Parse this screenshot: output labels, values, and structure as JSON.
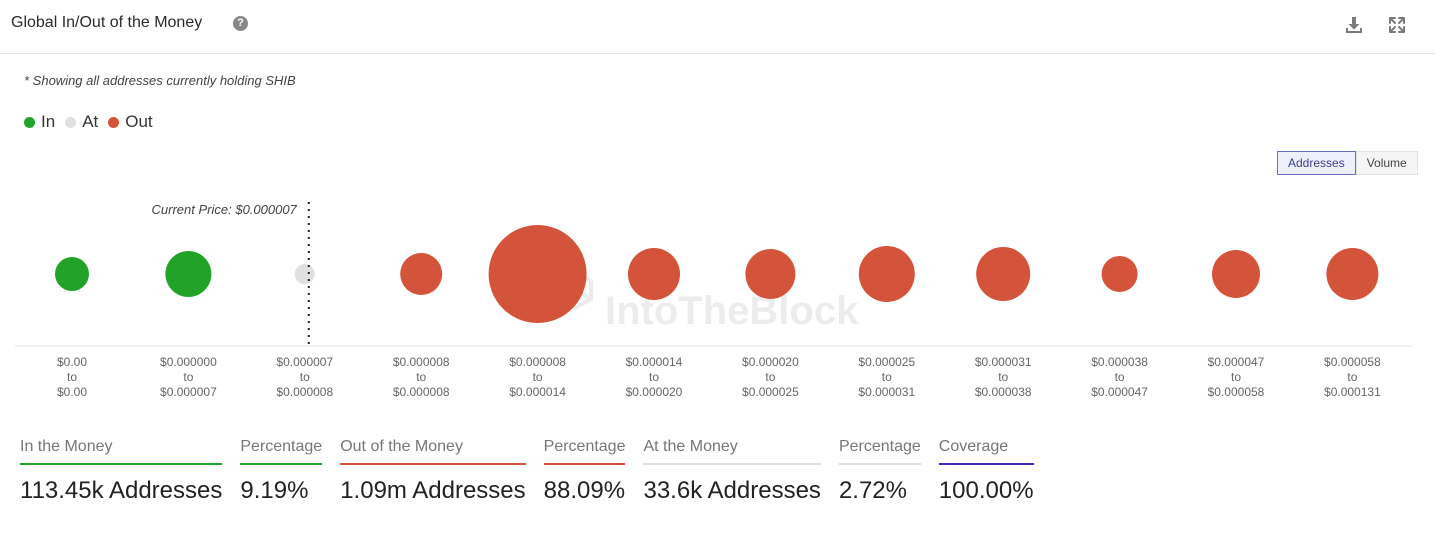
{
  "header": {
    "title": "Global In/Out of the Money",
    "help_icon": "question-circle-icon",
    "download_icon": "download-icon",
    "expand_icon": "expand-icon"
  },
  "note": "* Showing all addresses currently holding SHIB",
  "legend": [
    {
      "label": "In",
      "color": "#22a228"
    },
    {
      "label": "At",
      "color": "#e0e0e0"
    },
    {
      "label": "Out",
      "color": "#d4533b"
    }
  ],
  "toggle": {
    "addresses_label": "Addresses",
    "volume_label": "Volume",
    "active": "Addresses"
  },
  "watermark": "IntoTheBlock",
  "chart_data": {
    "type": "bubble",
    "current_price_label": "Current Price: $0.000007",
    "current_price_bucket_index": 2,
    "buckets": [
      {
        "from": "$0.00",
        "to": "$0.00",
        "status": "in",
        "size": 17
      },
      {
        "from": "$0.000000",
        "to": "$0.000007",
        "status": "in",
        "size": 23
      },
      {
        "from": "$0.000007",
        "to": "$0.000008",
        "status": "at",
        "size": 10
      },
      {
        "from": "$0.000008",
        "to": "$0.000008",
        "status": "out",
        "size": 21
      },
      {
        "from": "$0.000008",
        "to": "$0.000014",
        "status": "out",
        "size": 49
      },
      {
        "from": "$0.000014",
        "to": "$0.000020",
        "status": "out",
        "size": 26
      },
      {
        "from": "$0.000020",
        "to": "$0.000025",
        "status": "out",
        "size": 25
      },
      {
        "from": "$0.000025",
        "to": "$0.000031",
        "status": "out",
        "size": 28
      },
      {
        "from": "$0.000031",
        "to": "$0.000038",
        "status": "out",
        "size": 27
      },
      {
        "from": "$0.000038",
        "to": "$0.000047",
        "status": "out",
        "size": 18
      },
      {
        "from": "$0.000047",
        "to": "$0.000058",
        "status": "out",
        "size": 24
      },
      {
        "from": "$0.000058",
        "to": "$0.000131",
        "status": "out",
        "size": 26
      }
    ],
    "range_connector": "to",
    "colors": {
      "in": "#22a228",
      "at": "#e0e0e0",
      "out": "#d4533b"
    }
  },
  "stats": [
    {
      "label": "In the Money",
      "value": "113.45k Addresses",
      "color": "#22a228"
    },
    {
      "label": "Percentage",
      "value": "9.19%",
      "color": "#22a228"
    },
    {
      "label": "Out of the Money",
      "value": "1.09m Addresses",
      "color": "#d4533b"
    },
    {
      "label": "Percentage",
      "value": "88.09%",
      "color": "#d4533b"
    },
    {
      "label": "At the Money",
      "value": "33.6k Addresses",
      "color": "#dcdcdc"
    },
    {
      "label": "Percentage",
      "value": "2.72%",
      "color": "#dcdcdc"
    },
    {
      "label": "Coverage",
      "value": "100.00%",
      "color": "#3a2bb8"
    }
  ]
}
